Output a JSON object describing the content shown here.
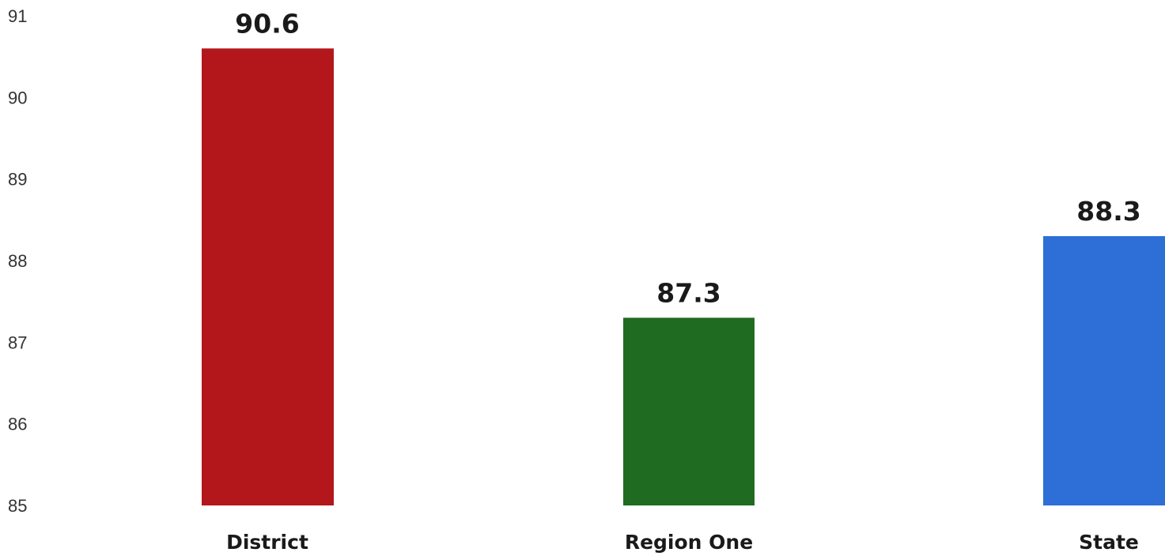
{
  "chart_data": {
    "type": "bar",
    "categories": [
      "District",
      "Region One",
      "State"
    ],
    "values": [
      90.6,
      87.3,
      88.3
    ],
    "value_labels": [
      "90.6",
      "87.3",
      "88.3"
    ],
    "colors": [
      "#b3171c",
      "#1f6b21",
      "#2d6fd6"
    ],
    "title": "",
    "xlabel": "",
    "ylabel": "",
    "ylim": [
      85,
      91
    ],
    "yticks": [
      "85",
      "86",
      "87",
      "88",
      "89",
      "90",
      "91"
    ],
    "grid": false,
    "legend": "none"
  }
}
